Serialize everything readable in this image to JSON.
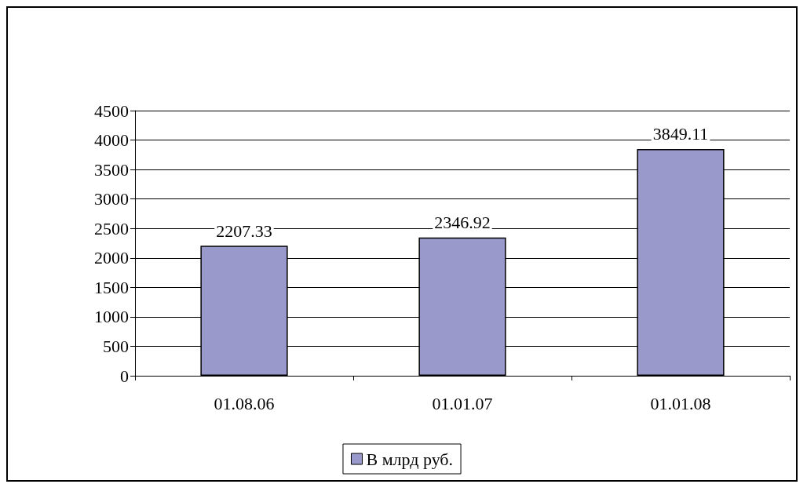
{
  "chart_data": {
    "type": "bar",
    "categories": [
      "01.08.06",
      "01.01.07",
      "01.01.08"
    ],
    "series": [
      {
        "name": "В млрд руб.",
        "color": "#9999cc",
        "values": [
          2207.33,
          2346.92,
          3849.11
        ]
      }
    ],
    "ylim": [
      0,
      4500
    ],
    "yticks": [
      0,
      500,
      1000,
      1500,
      2000,
      2500,
      3000,
      3500,
      4000,
      4500
    ],
    "grid": "y",
    "legend": "bottom",
    "data_labels": true
  }
}
